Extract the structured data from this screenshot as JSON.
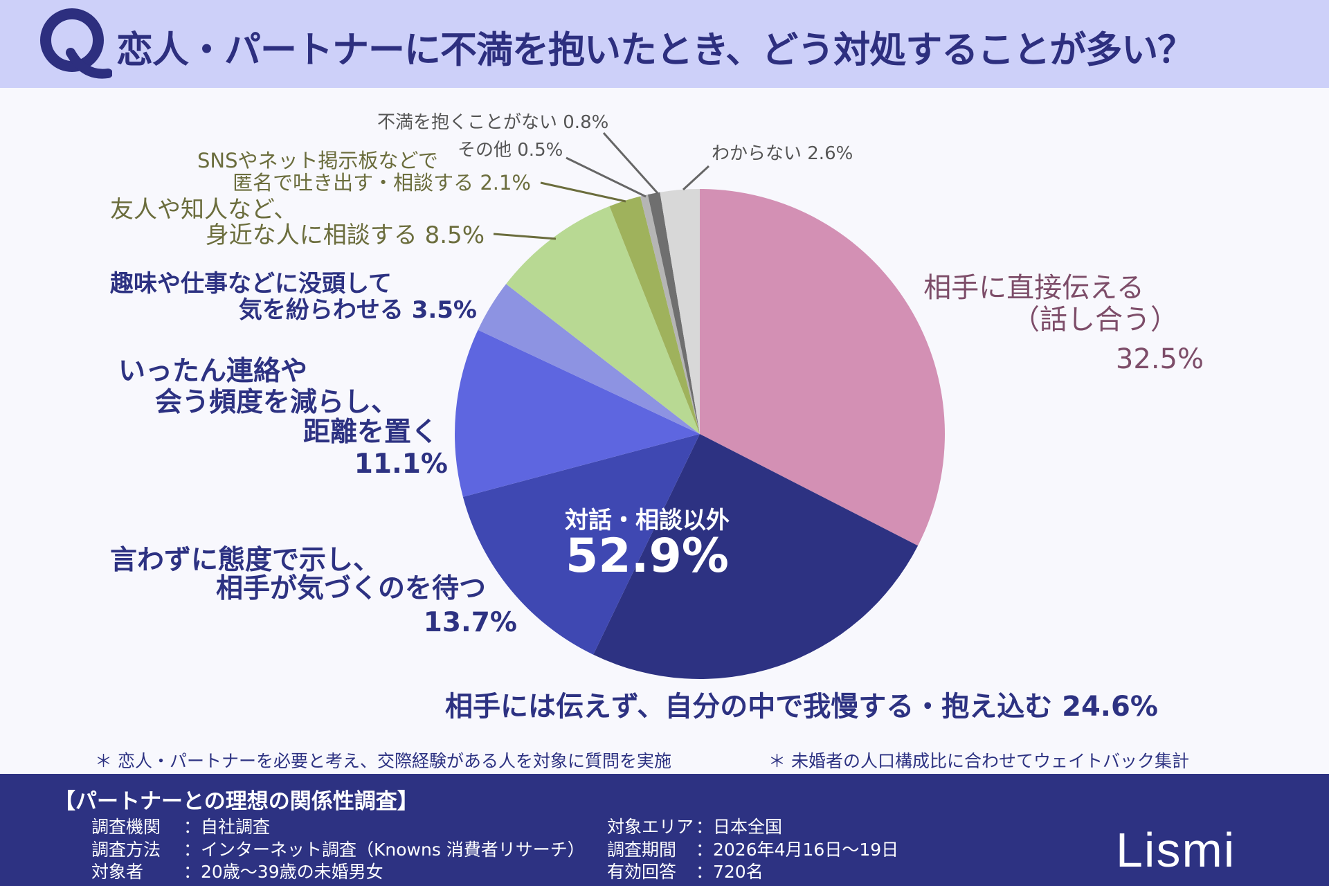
{
  "header": {
    "title": "恋人・パートナーに不満を抱いたとき、どう対処することが多い？",
    "q_icon": "Q"
  },
  "chart_data": {
    "type": "pie",
    "title": "恋人・パートナーに不満を抱いたとき、どう対処することが多い？",
    "direction": "clockwise from top",
    "slices": [
      {
        "label": "相手に直接伝える（話し合う）",
        "value": 32.5,
        "color": "#d390b4"
      },
      {
        "label": "相手には伝えず、自分の中で我慢する・抱え込む",
        "value": 24.6,
        "color": "#2d3282"
      },
      {
        "label": "言わずに態度で示し、相手が気づくのを待つ",
        "value": 13.7,
        "color": "#3f48b2"
      },
      {
        "label": "いったん連絡や会う頻度を減らし、距離を置く",
        "value": 11.1,
        "color": "#5e66e0"
      },
      {
        "label": "趣味や仕事などに没頭して気を紛らわせる",
        "value": 3.5,
        "color": "#8d93e2"
      },
      {
        "label": "友人や知人など、身近な人に相談する",
        "value": 8.5,
        "color": "#b8d993"
      },
      {
        "label": "SNSやネット掲示板などで匿名で吐き出す・相談する",
        "value": 2.1,
        "color": "#9fb25c"
      },
      {
        "label": "その他",
        "value": 0.5,
        "color": "#b5b5b5"
      },
      {
        "label": "不満を抱くことがない",
        "value": 0.8,
        "color": "#6f6f6f"
      },
      {
        "label": "わからない",
        "value": 2.6,
        "color": "#d8d8d8"
      }
    ],
    "annotation": {
      "label": "対話・相談以外",
      "value": "52.9%"
    }
  },
  "labels": {
    "direct": [
      "相手に直接伝える",
      "（話し合う）",
      "32.5%"
    ],
    "endure": "相手には伝えず、自分の中で我慢する・抱え込む 24.6%",
    "attitude": [
      "言わずに態度で示し、",
      "相手が気づくのを待つ",
      "13.7%"
    ],
    "distance": [
      "いったん連絡や",
      "会う頻度を減らし、",
      "距離を置く",
      "11.1%"
    ],
    "hobby": [
      "趣味や仕事などに没頭して",
      "気を紛らわせる 3.5%"
    ],
    "friend": [
      "友人や知人など、",
      "身近な人に相談する 8.5%"
    ],
    "sns": [
      "SNSやネット掲示板などで",
      "匿名で吐き出す・相談する 2.1%"
    ],
    "other": "その他 0.5%",
    "none": "不満を抱くことがない 0.8%",
    "unknown": "わからない 2.6%"
  },
  "notes": [
    "＊ 恋人・パートナーを必要と考え、交際経験がある人を対象に質問を実施",
    "＊ 未婚者の人口構成比に合わせてウェイトバック集計"
  ],
  "footer": {
    "title": "【パートナーとの理想の関係性調査】",
    "left": [
      {
        "k": "調査機関",
        "v": "：自社調査"
      },
      {
        "k": "調査方法",
        "v": "：インターネット調査（Knowns 消費者リサーチ）"
      },
      {
        "k": "対象者",
        "v": "：20歳～39歳の未婚男女"
      }
    ],
    "right": [
      {
        "k": "対象エリア",
        "v": "：日本全国"
      },
      {
        "k": "調査期間",
        "v": "：2026年4月16日～19日"
      },
      {
        "k": "有効回答",
        "v": "：720名"
      }
    ],
    "logo": "Lismi"
  }
}
